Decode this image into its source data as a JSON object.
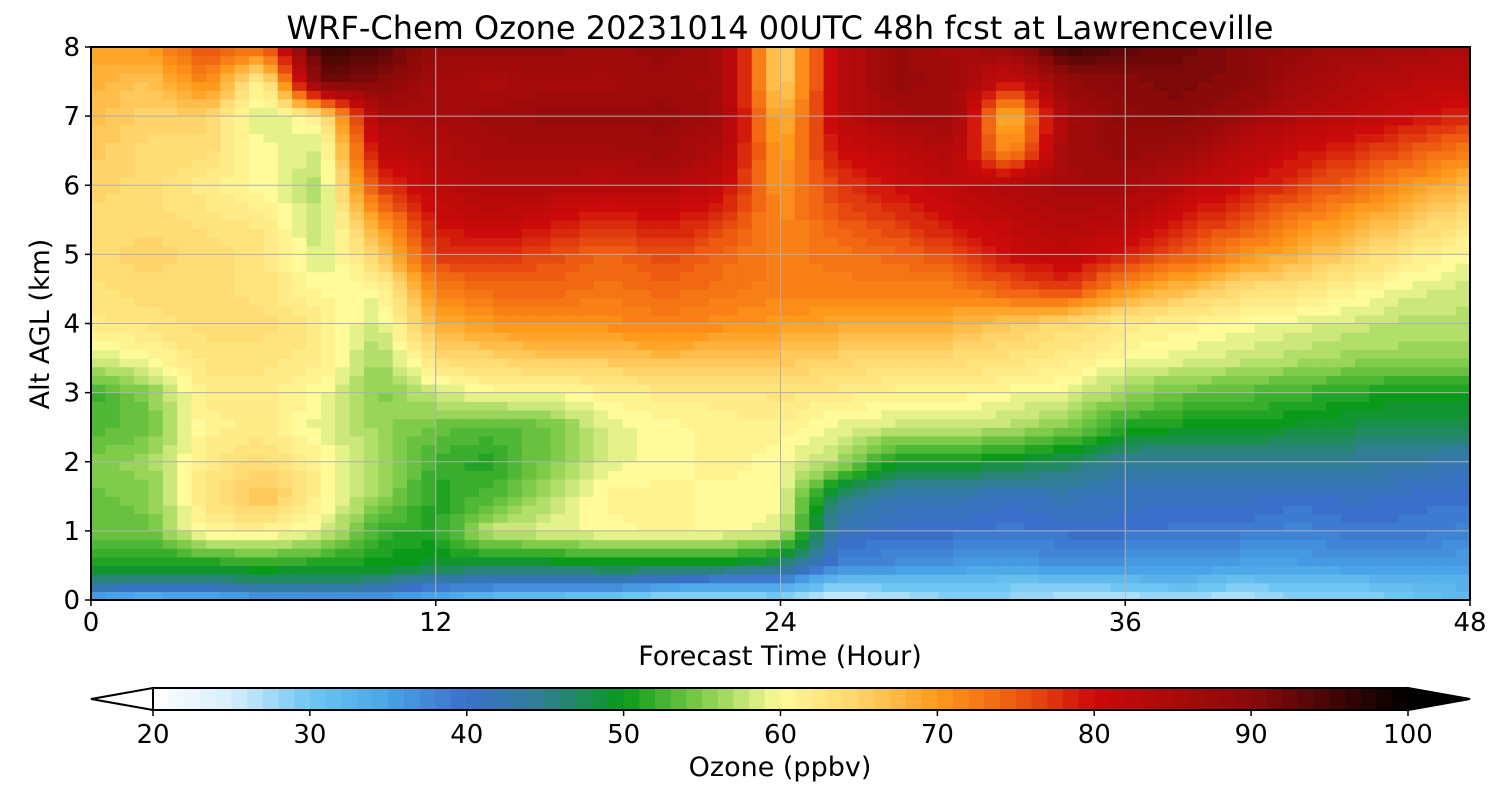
{
  "chart_data": {
    "type": "heatmap",
    "title": "WRF-Chem Ozone  20231014 00UTC 48h fcst at Lawrenceville",
    "xlabel": "Forecast Time (Hour)",
    "ylabel": "Alt AGL (km)",
    "xlim": [
      0,
      48
    ],
    "ylim": [
      0,
      8
    ],
    "x_ticks": [
      0,
      12,
      24,
      36,
      48
    ],
    "y_ticks": [
      0,
      1,
      2,
      3,
      4,
      5,
      6,
      7,
      8
    ],
    "grid": true,
    "colorbar": {
      "label": "Ozone  (ppbv)",
      "range": [
        20,
        100
      ],
      "ticks": [
        20,
        30,
        40,
        50,
        60,
        70,
        80,
        90,
        100
      ],
      "extend": "both",
      "colormap": [
        [
          20,
          "#ffffff"
        ],
        [
          25,
          "#d6eefb"
        ],
        [
          30,
          "#6ec6f2"
        ],
        [
          35,
          "#4aa3e6"
        ],
        [
          40,
          "#3a70cc"
        ],
        [
          45,
          "#2f7f8f"
        ],
        [
          50,
          "#0a9a1a"
        ],
        [
          55,
          "#7fcc4a"
        ],
        [
          60,
          "#fffb9a"
        ],
        [
          65,
          "#ffd46a"
        ],
        [
          70,
          "#ff9a1a"
        ],
        [
          75,
          "#ee5a10"
        ],
        [
          80,
          "#cc0a0a"
        ],
        [
          90,
          "#8a0a0a"
        ],
        [
          100,
          "#000000"
        ]
      ]
    },
    "z_grid_x": [
      0,
      2,
      4,
      6,
      8,
      10,
      12,
      14,
      16,
      18,
      20,
      22,
      24,
      26,
      28,
      30,
      32,
      34,
      36,
      38,
      40,
      42,
      44,
      46,
      48
    ],
    "z_grid_y": [
      0,
      0.25,
      0.5,
      1,
      1.5,
      2,
      2.5,
      3,
      3.5,
      4,
      4.5,
      5,
      5.5,
      6,
      6.5,
      7,
      7.5,
      8
    ],
    "z": [
      [
        33,
        31,
        32,
        34,
        34,
        34,
        33,
        30,
        29,
        28,
        26,
        26,
        28,
        24,
        26,
        28,
        28,
        26,
        26,
        27,
        26,
        28,
        28,
        30,
        32
      ],
      [
        45,
        44,
        44,
        46,
        46,
        45,
        41,
        40,
        40,
        40,
        38,
        36,
        36,
        30,
        31,
        31,
        30,
        30,
        31,
        32,
        30,
        31,
        31,
        32,
        33
      ],
      [
        51,
        50,
        50,
        51,
        50,
        50,
        49,
        48,
        48,
        49,
        49,
        49,
        46,
        38,
        37,
        36,
        35,
        37,
        36,
        36,
        35,
        35,
        36,
        36,
        35
      ],
      [
        54,
        54,
        61,
        61,
        59,
        52,
        51,
        58,
        59,
        60,
        61,
        60,
        59,
        42,
        40,
        40,
        39,
        40,
        40,
        39,
        39,
        38,
        39,
        39,
        38
      ],
      [
        54,
        55,
        63,
        67,
        61,
        56,
        51,
        53,
        57,
        61,
        61,
        60,
        60,
        46,
        42,
        42,
        41,
        42,
        41,
        41,
        41,
        40,
        41,
        40,
        40
      ],
      [
        55,
        56,
        62,
        64,
        61,
        57,
        52,
        51,
        55,
        59,
        60,
        61,
        60,
        57,
        50,
        50,
        49,
        47,
        44,
        44,
        44,
        44,
        44,
        43,
        42
      ],
      [
        53,
        54,
        61,
        62,
        59,
        56,
        54,
        53,
        54,
        59,
        60,
        61,
        61,
        59,
        58,
        58,
        57,
        55,
        51,
        50,
        50,
        49,
        48,
        48,
        48
      ],
      [
        52,
        55,
        62,
        62,
        60,
        55,
        58,
        60,
        60,
        61,
        62,
        62,
        63,
        62,
        61,
        61,
        60,
        59,
        56,
        54,
        53,
        52,
        51,
        50,
        50
      ],
      [
        58,
        60,
        63,
        63,
        62,
        56,
        64,
        65,
        66,
        66,
        67,
        66,
        66,
        65,
        64,
        64,
        63,
        62,
        60,
        59,
        58,
        57,
        56,
        56,
        56
      ],
      [
        62,
        63,
        64,
        64,
        62,
        58,
        68,
        70,
        71,
        71,
        72,
        71,
        70,
        69,
        69,
        68,
        66,
        64,
        62,
        61,
        60,
        59,
        58,
        57,
        57
      ],
      [
        63,
        64,
        64,
        63,
        60,
        60,
        72,
        74,
        74,
        73,
        74,
        73,
        72,
        72,
        72,
        72,
        75,
        77,
        70,
        67,
        64,
        63,
        61,
        59,
        58
      ],
      [
        64,
        65,
        64,
        63,
        58,
        65,
        77,
        78,
        76,
        74,
        76,
        74,
        72,
        73,
        74,
        76,
        80,
        82,
        79,
        75,
        71,
        68,
        65,
        62,
        60
      ],
      [
        64,
        64,
        63,
        62,
        57,
        70,
        80,
        82,
        80,
        78,
        80,
        77,
        71,
        75,
        77,
        80,
        82,
        84,
        83,
        79,
        76,
        72,
        69,
        66,
        63
      ],
      [
        65,
        64,
        62,
        60,
        57,
        77,
        82,
        84,
        84,
        83,
        84,
        81,
        70,
        77,
        80,
        82,
        84,
        86,
        86,
        83,
        80,
        77,
        74,
        70,
        67
      ],
      [
        66,
        64,
        64,
        60,
        58,
        82,
        84,
        86,
        86,
        86,
        87,
        84,
        69,
        80,
        82,
        84,
        70,
        87,
        88,
        87,
        83,
        80,
        78,
        75,
        72
      ],
      [
        67,
        65,
        65,
        58,
        62,
        85,
        86,
        87,
        88,
        88,
        88,
        86,
        67,
        82,
        86,
        87,
        66,
        86,
        89,
        90,
        87,
        84,
        82,
        80,
        78
      ],
      [
        68,
        66,
        72,
        60,
        92,
        90,
        86,
        85,
        86,
        86,
        87,
        86,
        64,
        82,
        88,
        87,
        80,
        88,
        90,
        91,
        90,
        86,
        84,
        83,
        82
      ],
      [
        69,
        70,
        76,
        74,
        96,
        94,
        88,
        88,
        88,
        87,
        88,
        86,
        64,
        82,
        88,
        86,
        88,
        96,
        93,
        92,
        90,
        88,
        87,
        86,
        85
      ]
    ]
  }
}
